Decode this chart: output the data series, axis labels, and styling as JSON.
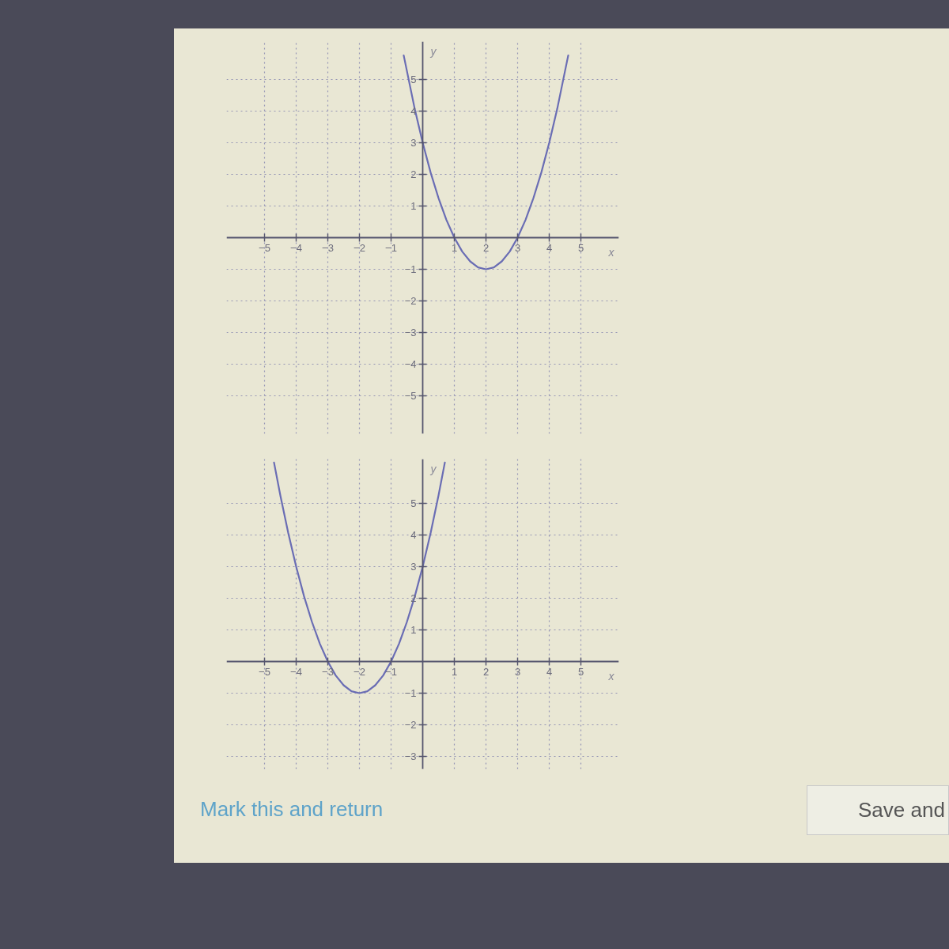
{
  "chart_data": [
    {
      "type": "line",
      "xlabel": "x",
      "ylabel": "y",
      "x": [
        -0.6,
        -0.25,
        0,
        0.25,
        0.5,
        0.75,
        1,
        1.25,
        1.5,
        1.75,
        2,
        2.25,
        2.5,
        2.75,
        3,
        3.25,
        3.5,
        3.75,
        4,
        4.25,
        4.6
      ],
      "series": [
        {
          "color": "#6a6db4",
          "values": [
            5.76,
            4.06,
            3,
            2.06,
            1.25,
            0.56,
            0,
            -0.44,
            -0.75,
            -0.94,
            -1,
            -0.94,
            -0.75,
            -0.44,
            0,
            0.56,
            1.25,
            2.06,
            3,
            4.06,
            5.76
          ]
        }
      ],
      "xlim": [
        -6.2,
        6.2
      ],
      "ylim": [
        -6.2,
        6.2
      ],
      "xticks": [
        -5,
        -4,
        -3,
        -2,
        -1,
        1,
        2,
        3,
        4,
        5
      ],
      "yticks": [
        -5,
        -4,
        -3,
        -2,
        -1,
        1,
        2,
        3,
        4,
        5
      ],
      "grid": true,
      "line_style": "solid"
    },
    {
      "type": "line",
      "xlabel": "x",
      "ylabel": "y",
      "x": [
        -4.7,
        -4.5,
        -4.25,
        -4,
        -3.75,
        -3.5,
        -3.25,
        -3,
        -2.75,
        -2.5,
        -2.25,
        -2,
        -1.75,
        -1.5,
        -1.25,
        -1,
        -0.75,
        -0.5,
        -0.25,
        0,
        0.25,
        0.5,
        0.7
      ],
      "series": [
        {
          "color": "#6a6db4",
          "values": [
            6.29,
            5.25,
            4.06,
            3,
            2.06,
            1.25,
            0.56,
            0,
            -0.44,
            -0.75,
            -0.94,
            -1,
            -0.94,
            -0.75,
            -0.44,
            0,
            0.56,
            1.25,
            2.06,
            3,
            4.06,
            5.25,
            6.29
          ]
        }
      ],
      "xlim": [
        -6.2,
        6.2
      ],
      "ylim": [
        -3.4,
        6.4
      ],
      "xticks": [
        -5,
        -4,
        -3,
        -2,
        -1,
        1,
        2,
        3,
        4,
        5
      ],
      "yticks": [
        -3,
        -2,
        -1,
        1,
        2,
        3,
        4,
        5
      ],
      "grid": true,
      "line_style": "solid",
      "annotations": [
        "Mark this and return",
        "Save and"
      ]
    }
  ]
}
